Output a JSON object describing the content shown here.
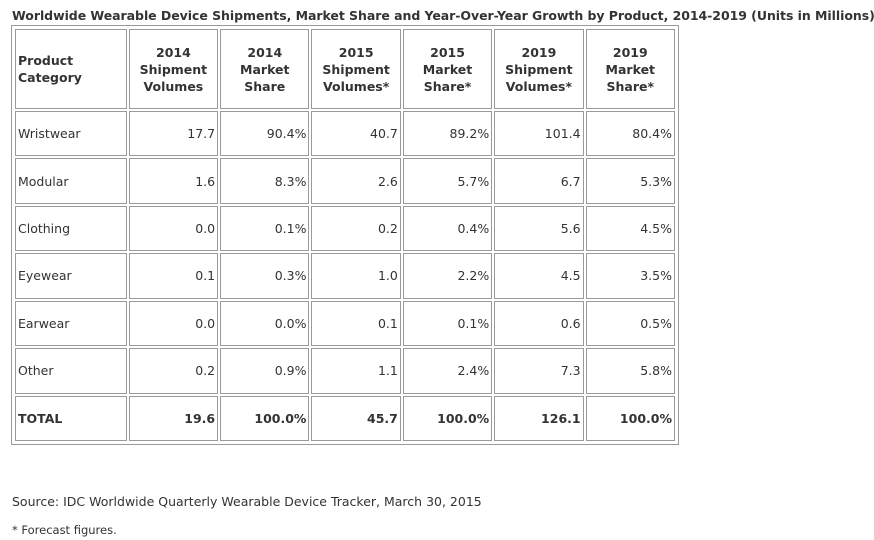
{
  "title": "Worldwide Wearable Device Shipments, Market Share and Year-Over-Year Growth by Product, 2014-2019 (Units in Millions)",
  "table": {
    "headers": [
      "Product Category",
      "2014 Shipment Volumes",
      "2014 Market Share",
      "2015 Shipment Volumes*",
      "2015 Market Share*",
      "2019 Shipment Volumes*",
      "2019 Market Share*"
    ],
    "rows": [
      [
        "Wristwear",
        "17.7",
        "90.4%",
        "40.7",
        "89.2%",
        "101.4",
        "80.4%"
      ],
      [
        "Modular",
        "1.6",
        "8.3%",
        "2.6",
        "5.7%",
        "6.7",
        "5.3%"
      ],
      [
        "Clothing",
        "0.0",
        "0.1%",
        "0.2",
        "0.4%",
        "5.6",
        "4.5%"
      ],
      [
        "Eyewear",
        "0.1",
        "0.3%",
        "1.0",
        "2.2%",
        "4.5",
        "3.5%"
      ],
      [
        "Earwear",
        "0.0",
        "0.0%",
        "0.1",
        "0.1%",
        "0.6",
        "0.5%"
      ],
      [
        "Other",
        "0.2",
        "0.9%",
        "1.1",
        "2.4%",
        "7.3",
        "5.8%"
      ],
      [
        "TOTAL",
        "19.6",
        "100.0%",
        "45.7",
        "100.0%",
        "126.1",
        "100.0%"
      ]
    ]
  },
  "source": "Source: IDC Worldwide Quarterly Wearable Device Tracker, March 30, 2015",
  "footnote": "* Forecast figures."
}
